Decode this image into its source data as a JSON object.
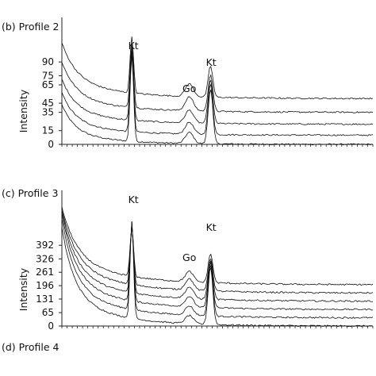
{
  "chart_data": [
    {
      "type": "line",
      "title": "(b) Profile 2",
      "xlabel": "",
      "ylabel": "Intensity",
      "y_ticks": [
        "0",
        "15",
        "35",
        "45",
        "65",
        "75",
        "90"
      ],
      "y_tick_values": [
        0,
        15,
        35,
        45,
        65,
        75,
        90
      ],
      "ylim": [
        0,
        130
      ],
      "x_range": [
        0,
        100
      ],
      "grid": false,
      "annotations": [
        {
          "label": "Kt",
          "x": 23
        },
        {
          "label": "Go",
          "x": 41
        },
        {
          "label": "Kt",
          "x": 48
        }
      ],
      "series": [
        {
          "offset": 0,
          "base_start": 30,
          "decay": 4.0,
          "kt1": 95,
          "go": 12,
          "kt2": 60
        },
        {
          "offset": 10,
          "base_start": 32,
          "decay": 4.2,
          "kt1": 88,
          "go": 13,
          "kt2": 55
        },
        {
          "offset": 22,
          "base_start": 34,
          "decay": 4.4,
          "kt1": 80,
          "go": 14,
          "kt2": 48
        },
        {
          "offset": 35,
          "base_start": 38,
          "decay": 4.6,
          "kt1": 70,
          "go": 15,
          "kt2": 40
        },
        {
          "offset": 50,
          "base_start": 42,
          "decay": 4.8,
          "kt1": 62,
          "go": 14,
          "kt2": 34
        }
      ]
    },
    {
      "type": "line",
      "title": "(c) Profile 3",
      "xlabel": "",
      "ylabel": "Intensity",
      "y_ticks": [
        "0",
        "65",
        "131",
        "196",
        "261",
        "326",
        "392"
      ],
      "y_tick_values": [
        0,
        65,
        131,
        196,
        261,
        326,
        392
      ],
      "ylim": [
        0,
        620
      ],
      "x_range": [
        0,
        100
      ],
      "grid": false,
      "annotations": [
        {
          "label": "Kt",
          "x": 23
        },
        {
          "label": "Go",
          "x": 41
        },
        {
          "label": "Kt",
          "x": 48
        }
      ],
      "series": [
        {
          "offset": 0,
          "base_start": 330,
          "decay": 4.0,
          "kt1": 470,
          "go": 40,
          "kt2": 280
        },
        {
          "offset": 40,
          "base_start": 330,
          "decay": 4.2,
          "kt1": 430,
          "go": 45,
          "kt2": 250
        },
        {
          "offset": 80,
          "base_start": 320,
          "decay": 4.4,
          "kt1": 380,
          "go": 50,
          "kt2": 220
        },
        {
          "offset": 120,
          "base_start": 300,
          "decay": 4.6,
          "kt1": 330,
          "go": 55,
          "kt2": 190
        },
        {
          "offset": 160,
          "base_start": 280,
          "decay": 4.8,
          "kt1": 280,
          "go": 55,
          "kt2": 160
        },
        {
          "offset": 200,
          "base_start": 260,
          "decay": 5.0,
          "kt1": 240,
          "go": 50,
          "kt2": 140
        }
      ]
    }
  ],
  "footer_title": "(d) Profile 4"
}
